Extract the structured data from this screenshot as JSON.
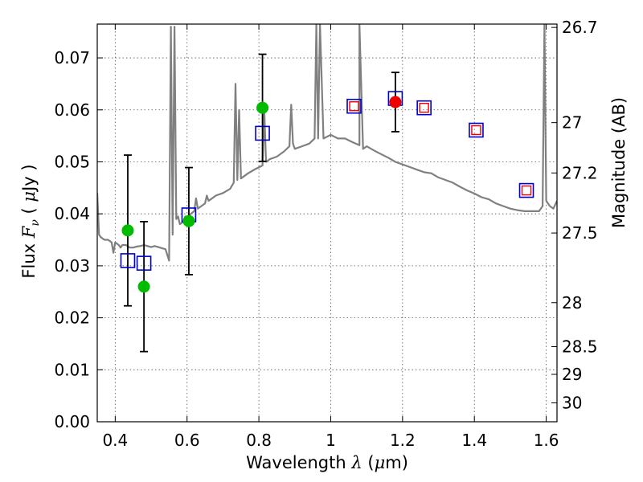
{
  "chart_data": {
    "type": "scatter",
    "title": "",
    "xlabel": {
      "prefix": "Wavelength",
      "symbol": "λ",
      "unit_open": "(",
      "unit_mu": "μ",
      "unit_rest": "m)"
    },
    "ylabel": {
      "prefix": "Flux",
      "symbol": "F",
      "subscript": "ν",
      "unit_open": "(",
      "unit_mu": "μ",
      "unit_rest": "Jy )"
    },
    "y2label": "Magnitude (AB)",
    "xlim": [
      0.35,
      1.63
    ],
    "ylim": [
      0.0,
      0.0765
    ],
    "grid": true,
    "x_ticks": [
      {
        "value": 0.4,
        "label": "0.4"
      },
      {
        "value": 0.6,
        "label": "0.6"
      },
      {
        "value": 0.8,
        "label": "0.8"
      },
      {
        "value": 1.0,
        "label": "1"
      },
      {
        "value": 1.2,
        "label": "1.2"
      },
      {
        "value": 1.4,
        "label": "1.4"
      },
      {
        "value": 1.6,
        "label": "1.6"
      }
    ],
    "y_ticks": [
      {
        "value": 0.0,
        "label": "0.00"
      },
      {
        "value": 0.01,
        "label": "0.01"
      },
      {
        "value": 0.02,
        "label": "0.02"
      },
      {
        "value": 0.03,
        "label": "0.03"
      },
      {
        "value": 0.04,
        "label": "0.04"
      },
      {
        "value": 0.05,
        "label": "0.05"
      },
      {
        "value": 0.06,
        "label": "0.06"
      },
      {
        "value": 0.07,
        "label": "0.07"
      }
    ],
    "y2_ticks": [
      {
        "mag": 26.7,
        "label": "26.7"
      },
      {
        "mag": 27.0,
        "label": "27"
      },
      {
        "mag": 27.2,
        "label": "27.2"
      },
      {
        "mag": 27.5,
        "label": "27.5"
      },
      {
        "mag": 28.0,
        "label": "28"
      },
      {
        "mag": 28.5,
        "label": "28.5"
      },
      {
        "mag": 29.0,
        "label": "29"
      },
      {
        "mag": 30.0,
        "label": "30"
      }
    ],
    "colors": {
      "spectrum": "#808080",
      "model": "#0000cc",
      "green": "#00bb00",
      "red": "#ee0000",
      "errorbar": "#000000",
      "grid": "#555555"
    },
    "series": [
      {
        "name": "model spectrum",
        "kind": "line",
        "x": [
          0.35,
          0.355,
          0.36,
          0.37,
          0.38,
          0.39,
          0.395,
          0.4,
          0.41,
          0.415,
          0.42,
          0.43,
          0.44,
          0.45,
          0.46,
          0.47,
          0.48,
          0.49,
          0.5,
          0.51,
          0.52,
          0.53,
          0.54,
          0.55,
          0.555,
          0.56,
          0.565,
          0.57,
          0.575,
          0.58,
          0.59,
          0.595,
          0.6,
          0.61,
          0.62,
          0.625,
          0.63,
          0.64,
          0.65,
          0.655,
          0.66,
          0.67,
          0.68,
          0.7,
          0.72,
          0.73,
          0.735,
          0.74,
          0.745,
          0.75,
          0.77,
          0.79,
          0.81,
          0.815,
          0.82,
          0.83,
          0.85,
          0.87,
          0.885,
          0.89,
          0.895,
          0.9,
          0.92,
          0.94,
          0.955,
          0.96,
          0.965,
          0.97,
          0.98,
          1.0,
          1.02,
          1.04,
          1.06,
          1.08,
          1.08,
          1.09,
          1.1,
          1.12,
          1.14,
          1.16,
          1.18,
          1.2,
          1.22,
          1.24,
          1.26,
          1.28,
          1.3,
          1.32,
          1.34,
          1.36,
          1.38,
          1.4,
          1.42,
          1.44,
          1.46,
          1.48,
          1.5,
          1.52,
          1.54,
          1.56,
          1.58,
          1.59,
          1.595,
          1.6,
          1.61,
          1.62,
          1.63
        ],
        "y": [
          0.044,
          0.036,
          0.0355,
          0.035,
          0.035,
          0.0345,
          0.0325,
          0.0345,
          0.034,
          0.0335,
          0.034,
          0.034,
          0.0335,
          0.0335,
          0.0337,
          0.0338,
          0.034,
          0.0338,
          0.0336,
          0.0338,
          0.0336,
          0.0334,
          0.0332,
          0.031,
          0.076,
          0.036,
          0.076,
          0.039,
          0.0395,
          0.038,
          0.0385,
          0.0395,
          0.039,
          0.04,
          0.0405,
          0.043,
          0.041,
          0.0415,
          0.042,
          0.0435,
          0.0425,
          0.043,
          0.0435,
          0.044,
          0.0448,
          0.046,
          0.065,
          0.0465,
          0.06,
          0.0468,
          0.0478,
          0.0486,
          0.0493,
          0.06,
          0.05,
          0.0505,
          0.051,
          0.052,
          0.053,
          0.061,
          0.0535,
          0.0525,
          0.053,
          0.0535,
          0.0545,
          0.0765,
          0.0545,
          0.0765,
          0.0545,
          0.0552,
          0.0545,
          0.0545,
          0.0538,
          0.0532,
          0.0765,
          0.0525,
          0.053,
          0.0522,
          0.0515,
          0.0508,
          0.05,
          0.0495,
          0.049,
          0.0485,
          0.048,
          0.0478,
          0.047,
          0.0465,
          0.046,
          0.0452,
          0.0445,
          0.0439,
          0.0432,
          0.0428,
          0.042,
          0.0415,
          0.041,
          0.0407,
          0.0405,
          0.0405,
          0.0405,
          0.0415,
          0.0765,
          0.0425,
          0.0415,
          0.041,
          0.0425
        ]
      },
      {
        "name": "model photometry",
        "kind": "open-square",
        "x": [
          0.435,
          0.48,
          0.605,
          0.81,
          1.065,
          1.18,
          1.26,
          1.405,
          1.545
        ],
        "y": [
          0.031,
          0.0305,
          0.0398,
          0.0555,
          0.0607,
          0.0622,
          0.0604,
          0.0561,
          0.0445
        ]
      },
      {
        "name": "observed detections",
        "kind": "filled-circle",
        "x": [
          0.435,
          0.48,
          0.605,
          0.81
        ],
        "y": [
          0.0368,
          0.026,
          0.0386,
          0.0604
        ],
        "yerr": [
          0.0145,
          0.0125,
          0.0103,
          0.0103
        ]
      },
      {
        "name": "observed (red)",
        "kind": "filled-circle",
        "x": [
          1.18
        ],
        "y": [
          0.0615
        ],
        "yerr": [
          0.0057
        ]
      },
      {
        "name": "observed (small squares)",
        "kind": "small-square",
        "x": [
          1.065,
          1.26,
          1.405,
          1.545
        ],
        "y": [
          0.0607,
          0.0604,
          0.0561,
          0.0445
        ]
      }
    ]
  }
}
